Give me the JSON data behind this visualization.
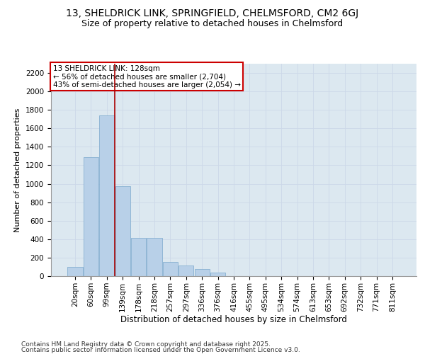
{
  "title1": "13, SHELDRICK LINK, SPRINGFIELD, CHELMSFORD, CM2 6GJ",
  "title2": "Size of property relative to detached houses in Chelmsford",
  "xlabel": "Distribution of detached houses by size in Chelmsford",
  "ylabel": "Number of detached properties",
  "categories": [
    "20sqm",
    "60sqm",
    "99sqm",
    "139sqm",
    "178sqm",
    "218sqm",
    "257sqm",
    "297sqm",
    "336sqm",
    "376sqm",
    "416sqm",
    "455sqm",
    "495sqm",
    "534sqm",
    "574sqm",
    "613sqm",
    "653sqm",
    "692sqm",
    "732sqm",
    "771sqm",
    "811sqm"
  ],
  "values": [
    100,
    1285,
    1740,
    970,
    415,
    415,
    155,
    115,
    75,
    40,
    0,
    0,
    0,
    0,
    0,
    0,
    0,
    0,
    0,
    0,
    0
  ],
  "bar_color": "#b8d0e8",
  "bar_edge_color": "#7aa8cc",
  "grid_color": "#ccd8e8",
  "background_color": "#dce8f0",
  "vline_x": 2.5,
  "vline_color": "#aa0000",
  "annotation_text": "13 SHELDRICK LINK: 128sqm\n← 56% of detached houses are smaller (2,704)\n43% of semi-detached houses are larger (2,054) →",
  "annotation_box_facecolor": "#ffffff",
  "annotation_box_edgecolor": "#cc0000",
  "footer1": "Contains HM Land Registry data © Crown copyright and database right 2025.",
  "footer2": "Contains public sector information licensed under the Open Government Licence v3.0.",
  "ylim": [
    0,
    2300
  ],
  "yticks": [
    0,
    200,
    400,
    600,
    800,
    1000,
    1200,
    1400,
    1600,
    1800,
    2000,
    2200
  ],
  "title1_fontsize": 10,
  "title2_fontsize": 9,
  "xlabel_fontsize": 8.5,
  "ylabel_fontsize": 8,
  "tick_fontsize": 7.5,
  "annotation_fontsize": 7.5,
  "footer_fontsize": 6.5
}
